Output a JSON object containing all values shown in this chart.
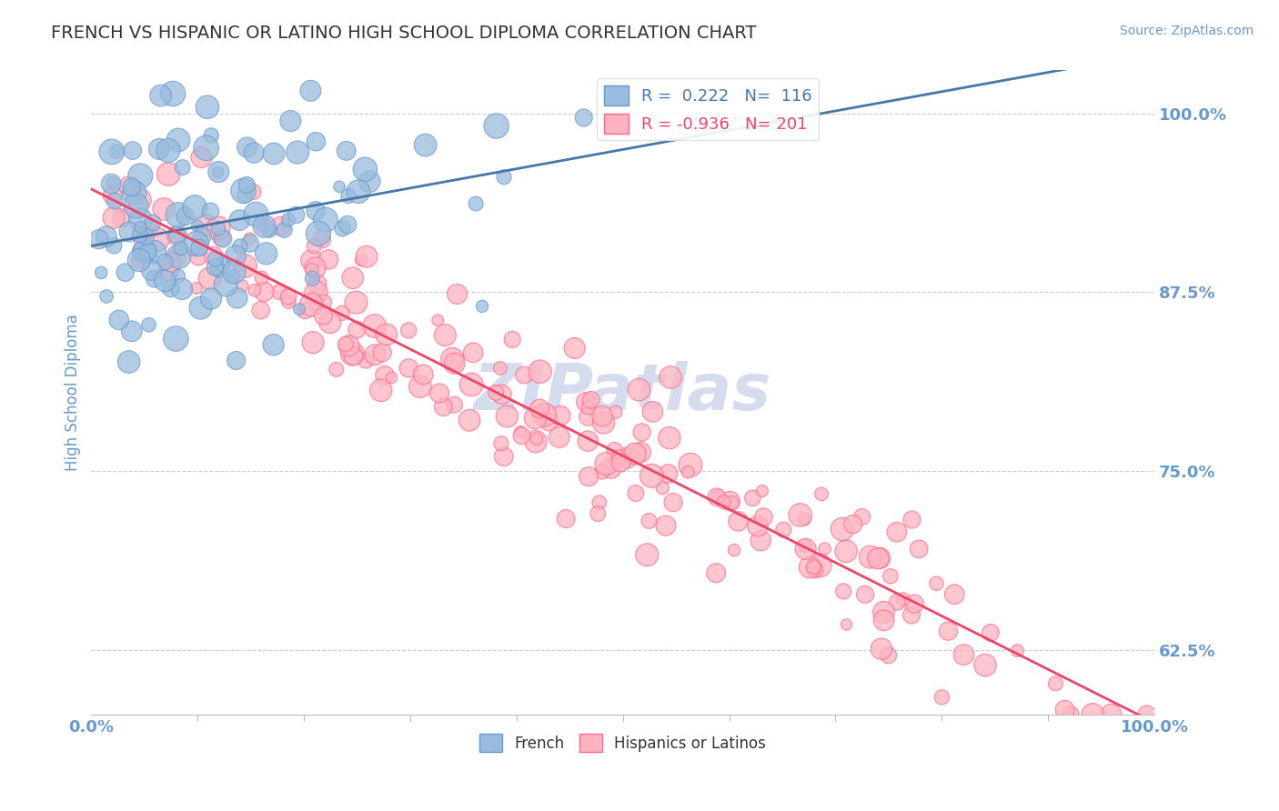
{
  "title": "FRENCH VS HISPANIC OR LATINO HIGH SCHOOL DIPLOMA CORRELATION CHART",
  "source_text": "Source: ZipAtlas.com",
  "ylabel": "High School Diploma",
  "xlabel": "",
  "xlim": [
    0,
    1
  ],
  "ylim": [
    0.58,
    1.03
  ],
  "yticks": [
    0.625,
    0.75,
    0.875,
    1.0
  ],
  "ytick_labels": [
    "62.5%",
    "75.0%",
    "87.5%",
    "100.0%"
  ],
  "xtick_labels": [
    "0.0%",
    "100.0%"
  ],
  "legend_french_r": "0.222",
  "legend_french_n": "116",
  "legend_hispanic_r": "-0.936",
  "legend_hispanic_n": "201",
  "french_color": "#6699CC",
  "french_fill": "#99BBDD",
  "hispanic_color": "#FF6688",
  "hispanic_fill": "#FFB3C1",
  "line_french_color": "#4477AA",
  "line_hispanic_color": "#EE4466",
  "watermark_color": "#AABBDD",
  "background_color": "#FFFFFF",
  "grid_color": "#CCCCCC",
  "title_color": "#333333",
  "axis_label_color": "#6699CC",
  "tick_label_color": "#6699CC",
  "french_seed": 42,
  "hispanic_seed": 7
}
